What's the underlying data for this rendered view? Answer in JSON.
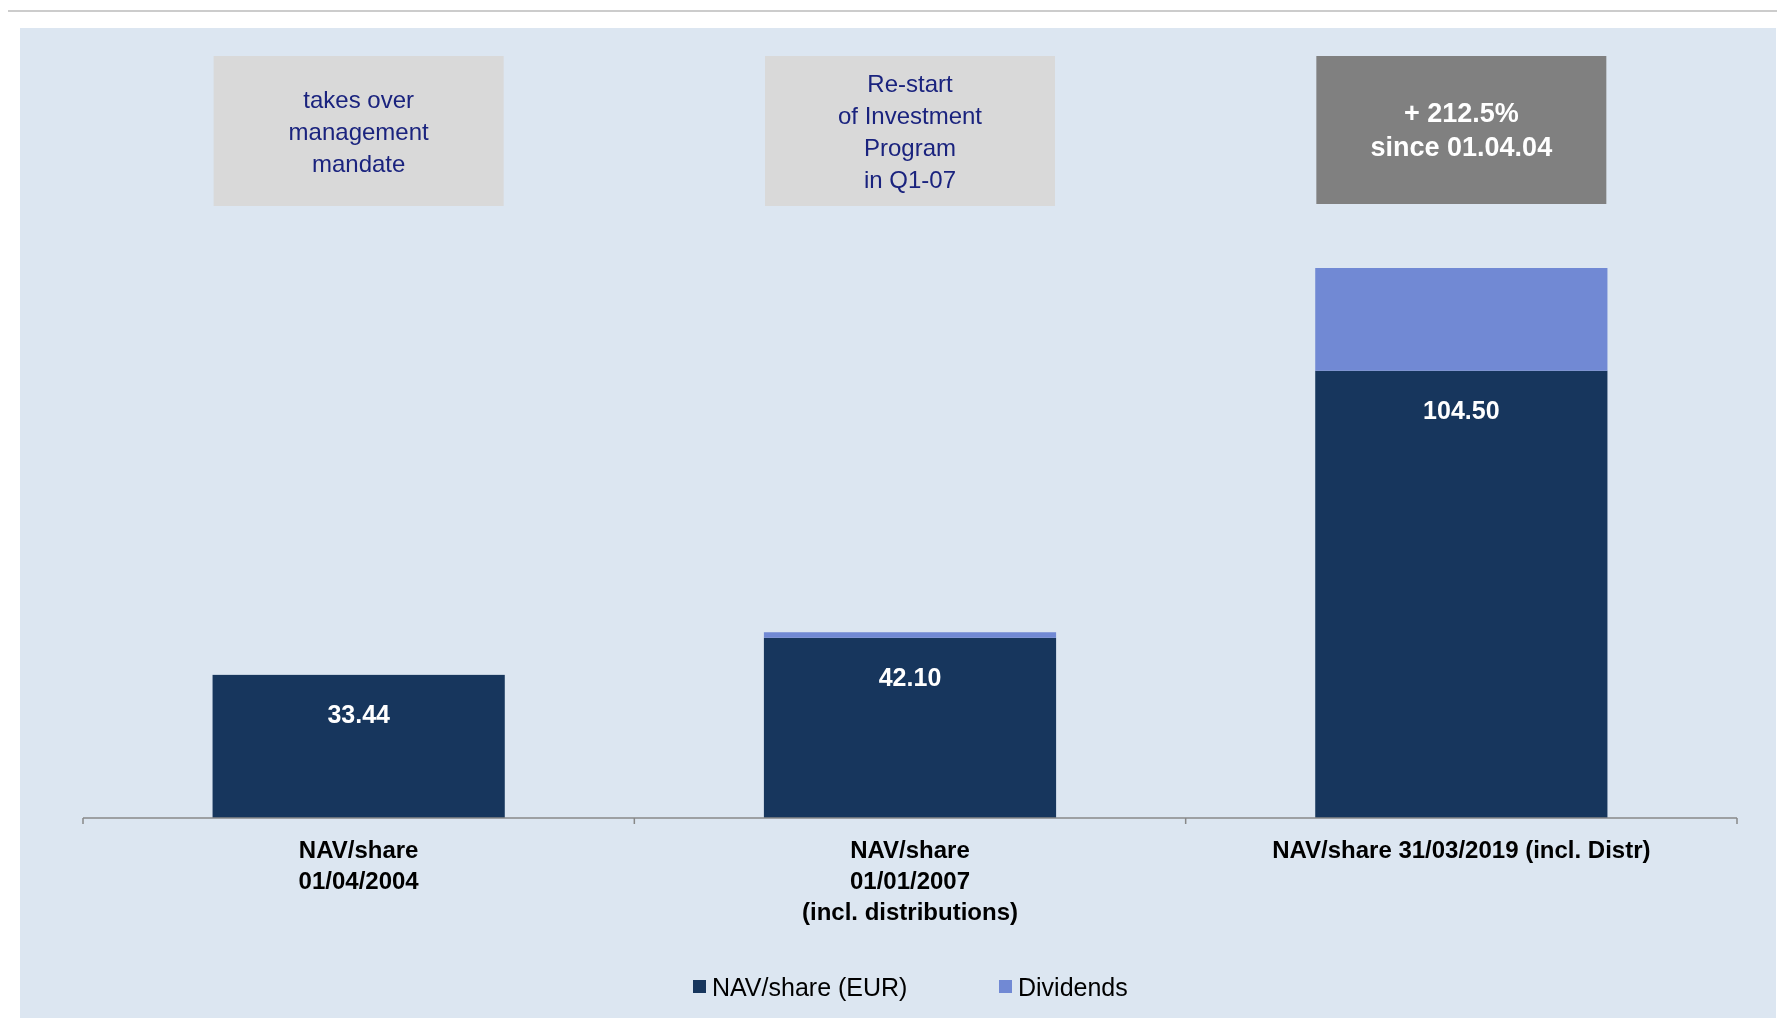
{
  "chart_data": {
    "type": "bar",
    "stacked": true,
    "categories": [
      "NAV/share\n01/04/2004",
      "NAV/share\n01/01/2007\n(incl. distributions)",
      "NAV/share 31/03/2019 (incl. Distr)"
    ],
    "series": [
      {
        "name": "NAV/share (EUR)",
        "color": "#17365d",
        "values": [
          33.44,
          42.1,
          104.5
        ],
        "value_labels": [
          "33.44",
          "42.10",
          "104.50"
        ]
      },
      {
        "name": "Dividends",
        "color": "#7189d4",
        "values": [
          0,
          1.3,
          24
        ]
      }
    ],
    "annotations": [
      "takes over\nmanagement\nmandate",
      "Re-start\nof Investment\nProgram\nin Q1-07",
      "+ 212.5%\nsince 01.04.04"
    ],
    "legend": "bottom"
  }
}
